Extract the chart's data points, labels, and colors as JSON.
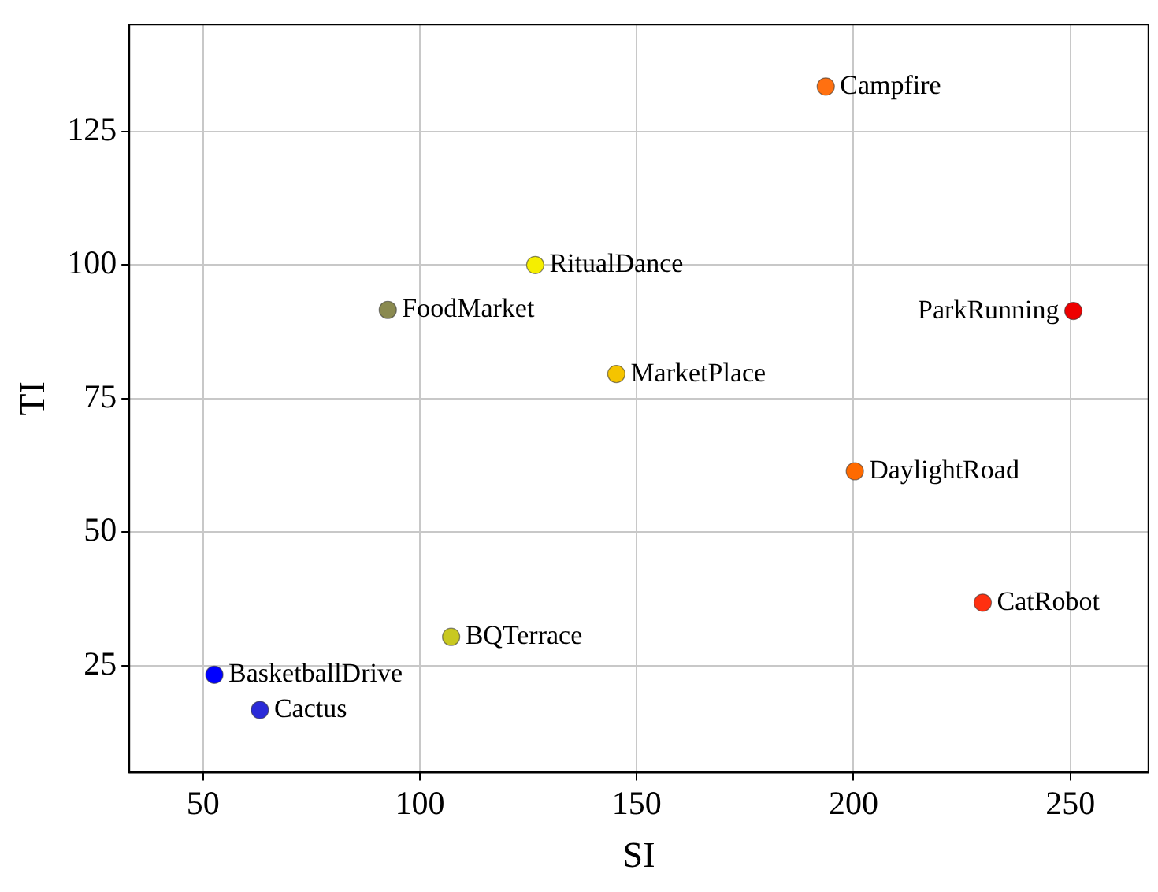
{
  "chart_data": {
    "type": "scatter",
    "xlabel": "SI",
    "ylabel": "TI",
    "x": [
      193.6,
      126.6,
      92.6,
      250.7,
      145.3,
      200.3,
      229.8,
      107.2,
      52.6,
      63.1
    ],
    "values": [
      133.4,
      100,
      91.6,
      91.4,
      79.6,
      61.4,
      36.8,
      30.4,
      23.3,
      16.7
    ],
    "colors": [
      "#ff7010",
      "#f5ee00",
      "#8a8a50",
      "#ee0000",
      "#f5c400",
      "#ff6a00",
      "#ff3010",
      "#c8c820",
      "#0000ff",
      "#2a2ad8"
    ],
    "annotations": [
      {
        "text": "Campfire",
        "x": 193.6,
        "y": 133.4
      },
      {
        "text": "RitualDance",
        "x": 126.6,
        "y": 100
      },
      {
        "text": "FoodMarket",
        "x": 92.6,
        "y": 91.6
      },
      {
        "text": "ParkRunning",
        "x": 250.7,
        "y": 91.4
      },
      {
        "text": "MarketPlace",
        "x": 145.3,
        "y": 79.6
      },
      {
        "text": "DaylightRoad",
        "x": 200.3,
        "y": 61.4
      },
      {
        "text": "CatRobot",
        "x": 229.8,
        "y": 36.8
      },
      {
        "text": "BQTerrace",
        "x": 107.2,
        "y": 30.4
      },
      {
        "text": "BasketballDrive",
        "x": 52.6,
        "y": 23.3
      },
      {
        "text": "Cactus",
        "x": 63.1,
        "y": 16.7
      }
    ],
    "xlim": [
      33,
      268
    ],
    "xticks": [
      50,
      100,
      150,
      200,
      250
    ],
    "ylim": [
      5,
      145
    ],
    "yticks": [
      25,
      50,
      75,
      100,
      125
    ],
    "grid": true,
    "legend": false,
    "marker": "circle"
  }
}
